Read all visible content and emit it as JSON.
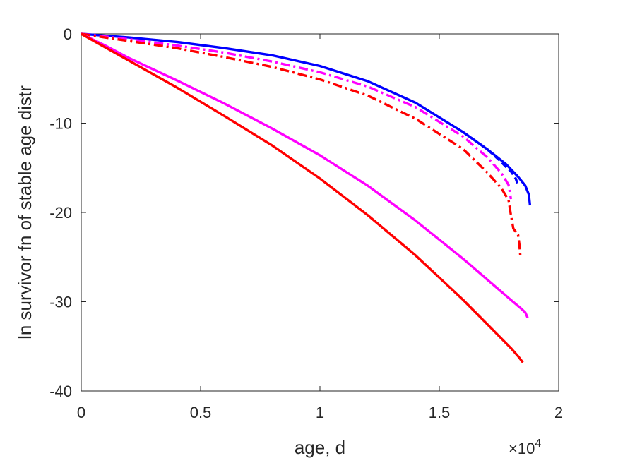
{
  "chart_data": {
    "type": "line",
    "xlabel": "age, d",
    "ylabel": "ln survivor fn of stable age distr",
    "x_exponent_label": "×10",
    "x_exponent_power": "4",
    "xlim": [
      0,
      20000
    ],
    "ylim": [
      -40,
      0
    ],
    "x_ticks": [
      0,
      5000,
      10000,
      15000,
      20000
    ],
    "x_tick_labels": [
      "0",
      "0.5",
      "1",
      "1.5",
      "2"
    ],
    "y_ticks": [
      0,
      -10,
      -20,
      -30,
      -40
    ],
    "y_tick_labels": [
      "0",
      "-10",
      "-20",
      "-30",
      "-40"
    ],
    "grid": false,
    "legend": "none",
    "series": [
      {
        "color": "#0000ff",
        "dash": "solid",
        "x": [
          0,
          2000,
          4000,
          6000,
          8000,
          10000,
          12000,
          14000,
          16000,
          17000,
          17800,
          18300,
          18600,
          18750,
          18800
        ],
        "y": [
          0,
          -0.4,
          -0.9,
          -1.6,
          -2.4,
          -3.6,
          -5.3,
          -7.7,
          -11.0,
          -12.9,
          -14.6,
          -16.0,
          -17.0,
          -18.0,
          -19.2
        ]
      },
      {
        "color": "#0000ff",
        "dash": "dashed",
        "x": [
          16000,
          17000,
          17500,
          17800,
          18000,
          18200,
          18300
        ],
        "y": [
          -11.0,
          -12.9,
          -14.1,
          -14.9,
          -15.4,
          -16.2,
          -17.0
        ]
      },
      {
        "color": "#ff00ff",
        "dash": "dashdot",
        "x": [
          0,
          2000,
          4000,
          6000,
          8000,
          10000,
          12000,
          14000,
          16000,
          17000,
          17600,
          17900,
          18000
        ],
        "y": [
          0,
          -0.6,
          -1.3,
          -2.1,
          -3.1,
          -4.3,
          -5.9,
          -8.2,
          -11.5,
          -13.8,
          -15.6,
          -16.9,
          -18.5
        ]
      },
      {
        "color": "#ff0000",
        "dash": "dashdot",
        "x": [
          0,
          2000,
          4000,
          6000,
          8000,
          10000,
          12000,
          14000,
          16000,
          17000,
          17600,
          17900,
          18000,
          18100,
          18300,
          18350,
          18400
        ],
        "y": [
          0,
          -0.8,
          -1.6,
          -2.6,
          -3.7,
          -5.1,
          -6.9,
          -9.5,
          -12.9,
          -15.5,
          -17.3,
          -18.6,
          -20.3,
          -21.8,
          -22.5,
          -23.5,
          -25.0
        ]
      },
      {
        "color": "#ff00ff",
        "dash": "solid",
        "x": [
          0,
          1000,
          2000,
          4000,
          6000,
          8000,
          10000,
          12000,
          14000,
          16000,
          17000,
          18000,
          18400,
          18600,
          18700
        ],
        "y": [
          0,
          -1.3,
          -2.7,
          -5.2,
          -7.8,
          -10.6,
          -13.6,
          -17.0,
          -20.9,
          -25.2,
          -27.5,
          -29.8,
          -30.7,
          -31.2,
          -31.8
        ]
      },
      {
        "color": "#ff0000",
        "dash": "solid",
        "x": [
          0,
          1000,
          2000,
          4000,
          6000,
          8000,
          10000,
          12000,
          14000,
          16000,
          17000,
          18000,
          18300,
          18500
        ],
        "y": [
          0,
          -1.5,
          -3.0,
          -6.0,
          -9.2,
          -12.5,
          -16.2,
          -20.3,
          -24.8,
          -29.8,
          -32.5,
          -35.2,
          -36.1,
          -36.8
        ]
      }
    ]
  }
}
